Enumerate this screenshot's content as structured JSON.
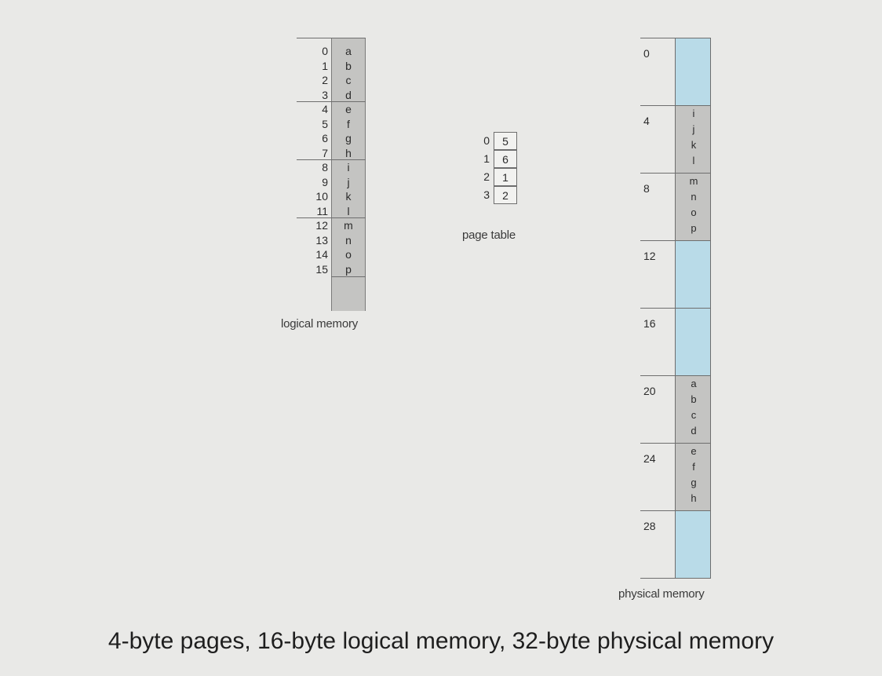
{
  "logical_memory": {
    "label": "logical memory",
    "indices": [
      "0",
      "1",
      "2",
      "3",
      "4",
      "5",
      "6",
      "7",
      "8",
      "9",
      "10",
      "11",
      "12",
      "13",
      "14",
      "15"
    ],
    "values": [
      "a",
      "b",
      "c",
      "d",
      "e",
      "f",
      "g",
      "h",
      "i",
      "j",
      "k",
      "l",
      "m",
      "n",
      "o",
      "p"
    ]
  },
  "page_table": {
    "label": "page table",
    "indices": [
      "0",
      "1",
      "2",
      "3"
    ],
    "frames": [
      "5",
      "6",
      "1",
      "2"
    ]
  },
  "physical_memory": {
    "label": "physical memory",
    "addresses": [
      "0",
      "4",
      "8",
      "12",
      "16",
      "20",
      "24",
      "28"
    ],
    "frames": [
      [],
      [
        "i",
        "j",
        "k",
        "l"
      ],
      [
        "m",
        "n",
        "o",
        "p"
      ],
      [],
      [],
      [
        "a",
        "b",
        "c",
        "d"
      ],
      [
        "e",
        "f",
        "g",
        "h"
      ],
      []
    ]
  },
  "caption": "4-byte pages, 16-byte logical memory, 32-byte physical memory",
  "colors": {
    "empty_frame": "#b9dbe8",
    "filled_frame": "#c4c4c2"
  }
}
